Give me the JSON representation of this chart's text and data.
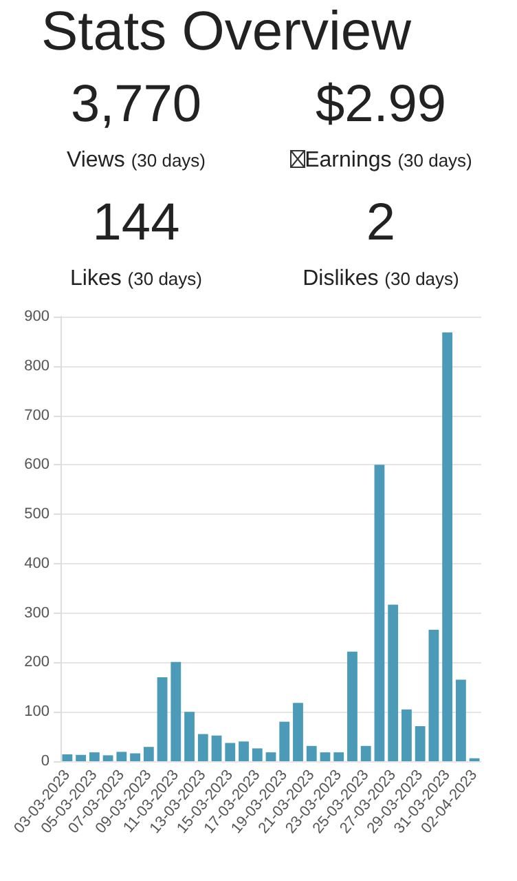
{
  "chart_data": [
    {
      "type": "other",
      "title": "Stats Overview",
      "annotations": [
        "3,770",
        "Views (30 days)",
        "$2.99",
        "Earnings (30 days)",
        "144",
        "Likes (30 days)",
        "2",
        "Dislikes (30 days)"
      ]
    },
    {
      "type": "bar",
      "categories": [
        "03-03-2023",
        null,
        "05-03-2023",
        null,
        "07-03-2023",
        null,
        "09-03-2023",
        null,
        "11-03-2023",
        null,
        "13-03-2023",
        null,
        "15-03-2023",
        null,
        "17-03-2023",
        null,
        "19-03-2023",
        null,
        "21-03-2023",
        null,
        "23-03-2023",
        null,
        "25-03-2023",
        null,
        "27-03-2023",
        null,
        "29-03-2023",
        null,
        "31-03-2023",
        null,
        "02-04-2023"
      ],
      "values": [
        14,
        13,
        18,
        12,
        19,
        16,
        29,
        170,
        201,
        100,
        55,
        52,
        37,
        40,
        26,
        18,
        80,
        118,
        31,
        18,
        18,
        222,
        31,
        600,
        317,
        105,
        71,
        266,
        868,
        165,
        6
      ],
      "color": "#4a9ab8",
      "ylim": [
        0,
        900
      ],
      "yticks": [
        0,
        100,
        200,
        300,
        400,
        500,
        600,
        700,
        800,
        900
      ],
      "grid": "y"
    }
  ]
}
